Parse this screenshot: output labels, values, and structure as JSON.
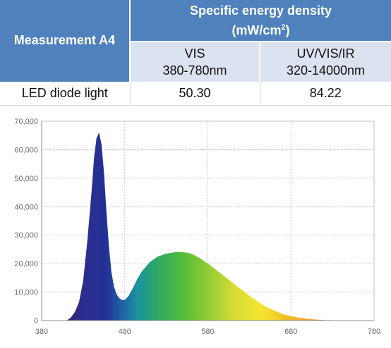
{
  "table": {
    "measurement_header": "Measurement A4",
    "group_header_line1": "Specific energy density",
    "group_header_unit_prefix": "(mW/cm",
    "group_header_unit_sup": "2",
    "group_header_unit_suffix": ")",
    "columns": [
      {
        "name": "VIS",
        "range": "380-780nm"
      },
      {
        "name": "UV/VIS/IR",
        "range": "320-14000nm"
      }
    ],
    "rows": [
      {
        "label": "LED diode light",
        "values": [
          "50.30",
          "84.22"
        ]
      }
    ]
  },
  "chart_data": {
    "type": "area",
    "title": "",
    "xlabel": "",
    "ylabel": "",
    "xlim": [
      380,
      780
    ],
    "ylim": [
      0,
      70000
    ],
    "x_ticks": [
      380,
      480,
      580,
      680,
      780
    ],
    "x_tick_labels": [
      "380",
      "480",
      "580",
      "680",
      "780"
    ],
    "y_ticks": [
      0,
      10000,
      20000,
      30000,
      40000,
      50000,
      60000,
      70000
    ],
    "y_tick_labels": [
      "0",
      "10,000",
      "20,000",
      "30,000",
      "40,000",
      "50,000",
      "60,000",
      "70,000"
    ],
    "grid": true,
    "fill": "visible-spectrum gradient",
    "series": [
      {
        "x": [
          410,
          415,
          420,
          425,
          430,
          435,
          440,
          443,
          446,
          449,
          452,
          455,
          458,
          461,
          464,
          467,
          470,
          473,
          476,
          480,
          485,
          490,
          495,
          500,
          510,
          520,
          530,
          540,
          550,
          555,
          560,
          570,
          580,
          590,
          600,
          610,
          620,
          630,
          640,
          650,
          660,
          670,
          680,
          690,
          700,
          710,
          720,
          730,
          740,
          750,
          760
        ],
        "y": [
          0,
          1000,
          3000,
          6500,
          14000,
          28000,
          45000,
          57000,
          64000,
          66000,
          62000,
          52000,
          38000,
          26000,
          17000,
          12000,
          9300,
          8000,
          7300,
          7200,
          8800,
          11500,
          14500,
          17000,
          20500,
          22500,
          23500,
          24000,
          24000,
          23800,
          23500,
          22000,
          20000,
          17800,
          15500,
          13200,
          11000,
          8700,
          6700,
          4800,
          3500,
          2300,
          1500,
          1000,
          600,
          350,
          200,
          120,
          60,
          20,
          0
        ]
      }
    ]
  }
}
